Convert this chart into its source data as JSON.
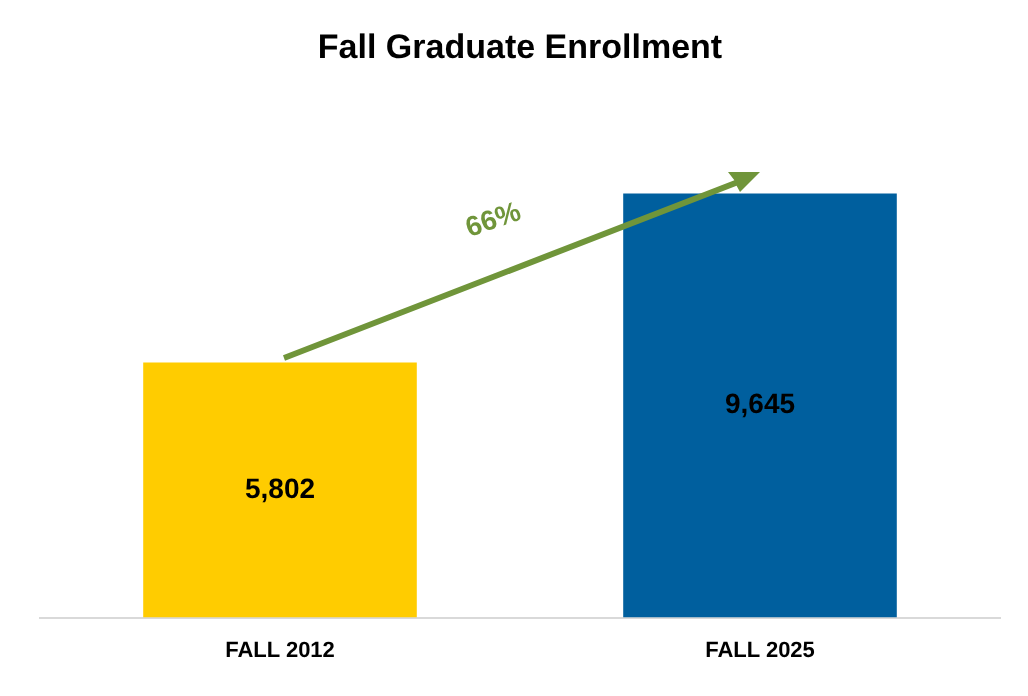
{
  "chart_data": {
    "type": "bar",
    "title": "Fall Graduate Enrollment",
    "categories": [
      "FALL 2012",
      "FALL 2025"
    ],
    "values": [
      5802,
      9645
    ],
    "colors": [
      "#ffcc00",
      "#005f9e"
    ],
    "value_labels": [
      "5,802",
      "9,645"
    ],
    "tick_labels": "x",
    "grid": false,
    "legend": false,
    "annotations": [
      "66%"
    ]
  }
}
